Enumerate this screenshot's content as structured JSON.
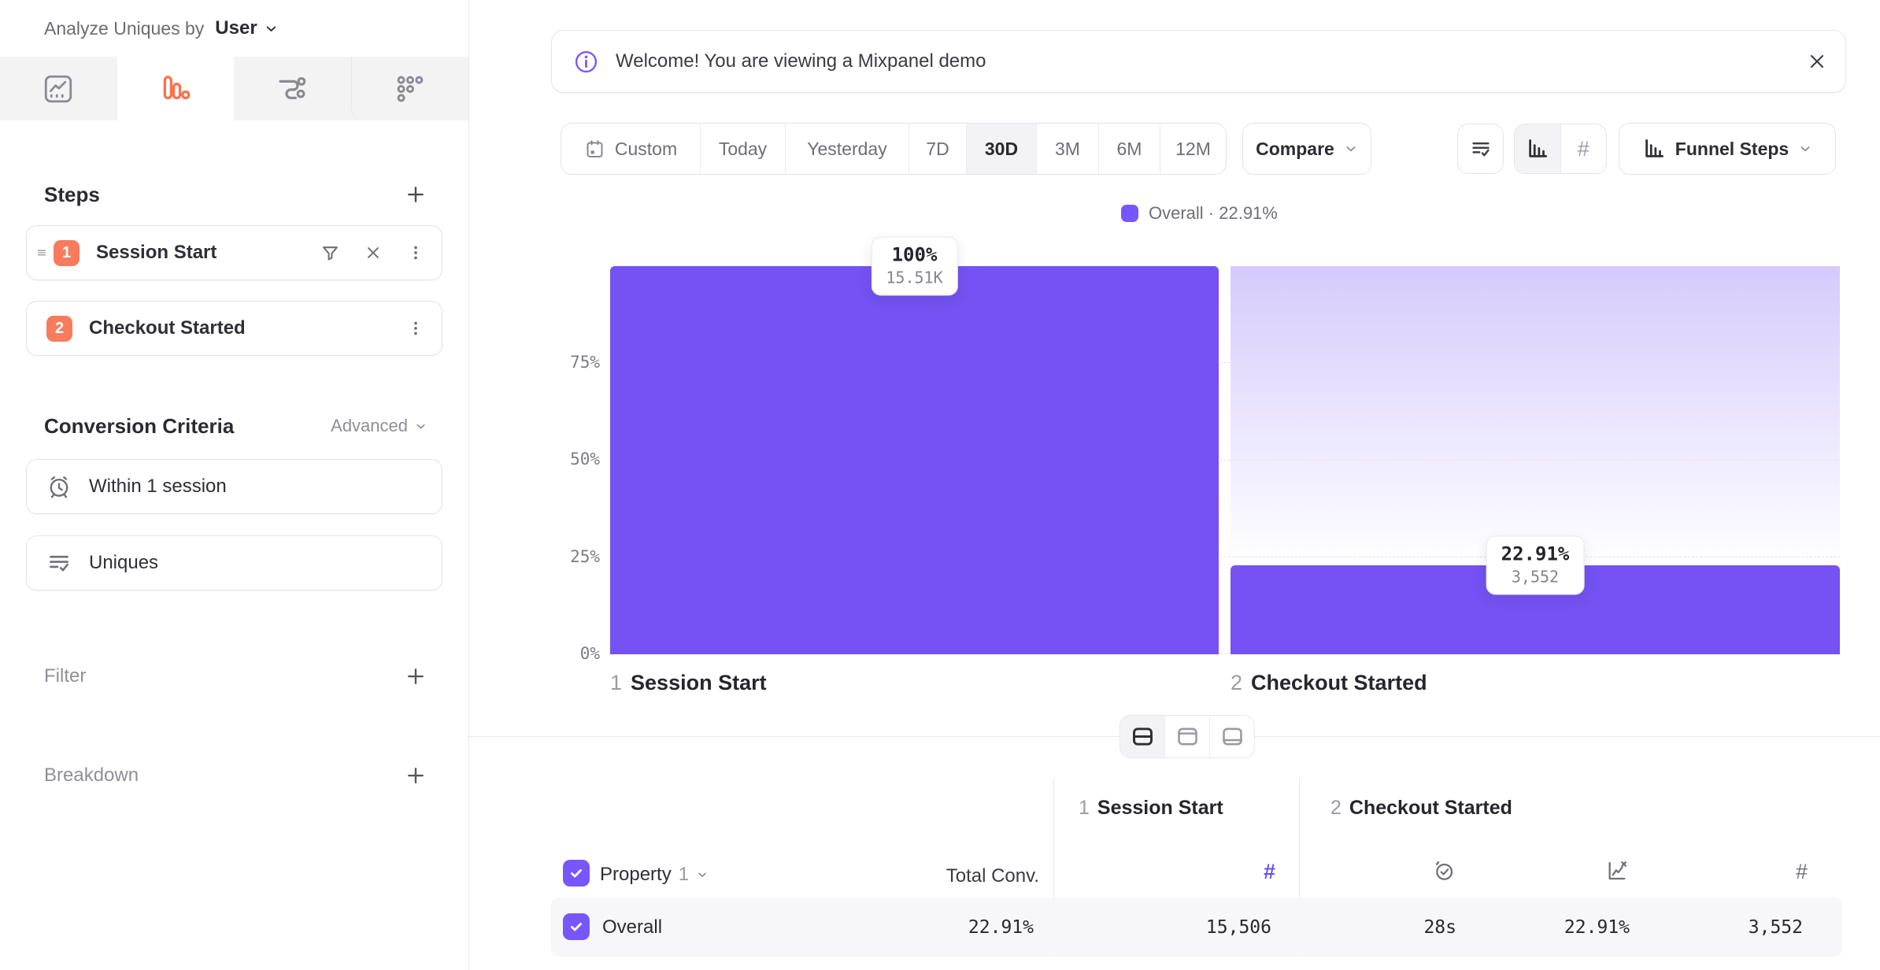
{
  "sidebar": {
    "analyze": {
      "label": "Analyze Uniques by",
      "value": "User"
    },
    "steps": {
      "title": "Steps",
      "items": [
        {
          "num": "1",
          "label": "Session Start"
        },
        {
          "num": "2",
          "label": "Checkout Started"
        }
      ]
    },
    "conversion": {
      "title": "Conversion Criteria",
      "advanced": "Advanced",
      "within": "Within 1 session",
      "uniques": "Uniques"
    },
    "filter": "Filter",
    "breakdown": "Breakdown"
  },
  "banner": {
    "message": "Welcome! You are viewing a Mixpanel demo"
  },
  "toolbar": {
    "ranges": [
      "Custom",
      "Today",
      "Yesterday",
      "7D",
      "30D",
      "3M",
      "6M",
      "12M"
    ],
    "selected_range": "30D",
    "compare": "Compare",
    "funnel_steps": "Funnel Steps"
  },
  "legend": {
    "text": "Overall · 22.91%",
    "swatch_color": "#7856FF"
  },
  "chart_data": {
    "type": "bar",
    "title": "Funnel Steps",
    "categories": [
      "Session Start",
      "Checkout Started"
    ],
    "category_numbers": [
      "1",
      "2"
    ],
    "series": [
      {
        "name": "Overall",
        "values": [
          100,
          22.91
        ],
        "value_labels": [
          "100%",
          "22.91%"
        ],
        "counts": [
          15506,
          3552
        ],
        "count_labels": [
          "15.51K",
          "3,552"
        ]
      }
    ],
    "ylim": [
      0,
      100
    ],
    "ytick_labels": [
      "0%",
      "25%",
      "50%",
      "75%"
    ],
    "grid": "dashed-horizontal",
    "legend_position": "top-center",
    "bar_color": "#7452F3",
    "remainder_gradient_top": "#D7CEFA",
    "overall_conversion": "22.91%"
  },
  "table": {
    "property_label": "Property",
    "property_number": "1",
    "total_conv_label": "Total Conv.",
    "groups": [
      {
        "number": "1",
        "label": "Session Start",
        "metrics": [
          "count"
        ]
      },
      {
        "number": "2",
        "label": "Checkout Started",
        "metrics": [
          "time-to-convert",
          "conversion-rate",
          "count"
        ]
      }
    ],
    "rows": [
      {
        "label": "Overall",
        "checked": true,
        "total_conv": "22.91%",
        "cells": [
          "15,506",
          "28s",
          "22.91%",
          "3,552"
        ]
      }
    ]
  },
  "symbols": {
    "hash": "#"
  },
  "colors": {
    "accent_purple": "#7856FF",
    "bar_purple": "#7452F3",
    "step_orange": "#F87B5E",
    "tab_icon_orange": "#F9724E"
  },
  "icons": {
    "sidebar_tabs": [
      "insights-icon",
      "funnels-icon",
      "flows-icon",
      "retention-icon"
    ],
    "step_actions": [
      "drag-handle-icon",
      "filter-icon",
      "close-icon",
      "kebab-icon",
      "plus-icon"
    ],
    "criteria": [
      "alarm-clock-icon",
      "list-check-icon"
    ],
    "banner": [
      "info-icon",
      "close-icon"
    ],
    "toolbar": [
      "calendar-icon",
      "chevron-down-icon",
      "list-check-icon",
      "bar-chart-icon",
      "hash-icon",
      "funnel-bars-icon"
    ],
    "view_toggle": [
      "split-view-icon",
      "top-view-icon",
      "bottom-view-icon"
    ],
    "table": [
      "checkbox-check-icon",
      "hash-icon",
      "clock-check-icon",
      "rate-chart-icon"
    ]
  }
}
